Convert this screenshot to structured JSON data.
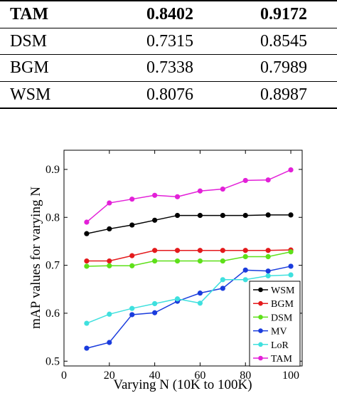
{
  "table": {
    "rows": [
      {
        "method": "TAM",
        "v1": "0.8402",
        "v2": "0.9172",
        "bold": true
      },
      {
        "method": "DSM",
        "v1": "0.7315",
        "v2": "0.8545",
        "bold": false
      },
      {
        "method": "BGM",
        "v1": "0.7338",
        "v2": "0.7989",
        "bold": false
      },
      {
        "method": "WSM",
        "v1": "0.8076",
        "v2": "0.8987",
        "bold": false
      }
    ]
  },
  "chart_data": {
    "type": "line",
    "xlabel": "Varying N (10K to 100K)",
    "ylabel": "mAP values for varying N",
    "xlim": [
      0,
      105
    ],
    "ylim": [
      0.49,
      0.94
    ],
    "xticks": [
      0,
      20,
      40,
      60,
      80,
      100
    ],
    "yticks": [
      0.5,
      0.6,
      0.7,
      0.8,
      0.9
    ],
    "legend_position": "bottom-right",
    "x": [
      10,
      20,
      30,
      40,
      50,
      60,
      70,
      80,
      90,
      100
    ],
    "series": [
      {
        "name": "WSM",
        "color": "#000000",
        "values": [
          0.766,
          0.776,
          0.784,
          0.794,
          0.804,
          0.804,
          0.804,
          0.804,
          0.805,
          0.805
        ]
      },
      {
        "name": "BGM",
        "color": "#e41a1c",
        "values": [
          0.709,
          0.709,
          0.72,
          0.731,
          0.731,
          0.731,
          0.731,
          0.731,
          0.731,
          0.732
        ]
      },
      {
        "name": "DSM",
        "color": "#5ee019",
        "values": [
          0.698,
          0.699,
          0.699,
          0.709,
          0.709,
          0.709,
          0.709,
          0.718,
          0.718,
          0.728
        ]
      },
      {
        "name": "MV",
        "color": "#1a3cdd",
        "values": [
          0.527,
          0.539,
          0.597,
          0.601,
          0.625,
          0.642,
          0.652,
          0.69,
          0.688,
          0.698
        ]
      },
      {
        "name": "LoR",
        "color": "#3fe0de",
        "values": [
          0.579,
          0.598,
          0.61,
          0.62,
          0.63,
          0.621,
          0.67,
          0.67,
          0.678,
          0.68
        ]
      },
      {
        "name": "TAM",
        "color": "#e320d8",
        "values": [
          0.79,
          0.83,
          0.838,
          0.846,
          0.843,
          0.855,
          0.859,
          0.877,
          0.878,
          0.899
        ]
      }
    ]
  }
}
